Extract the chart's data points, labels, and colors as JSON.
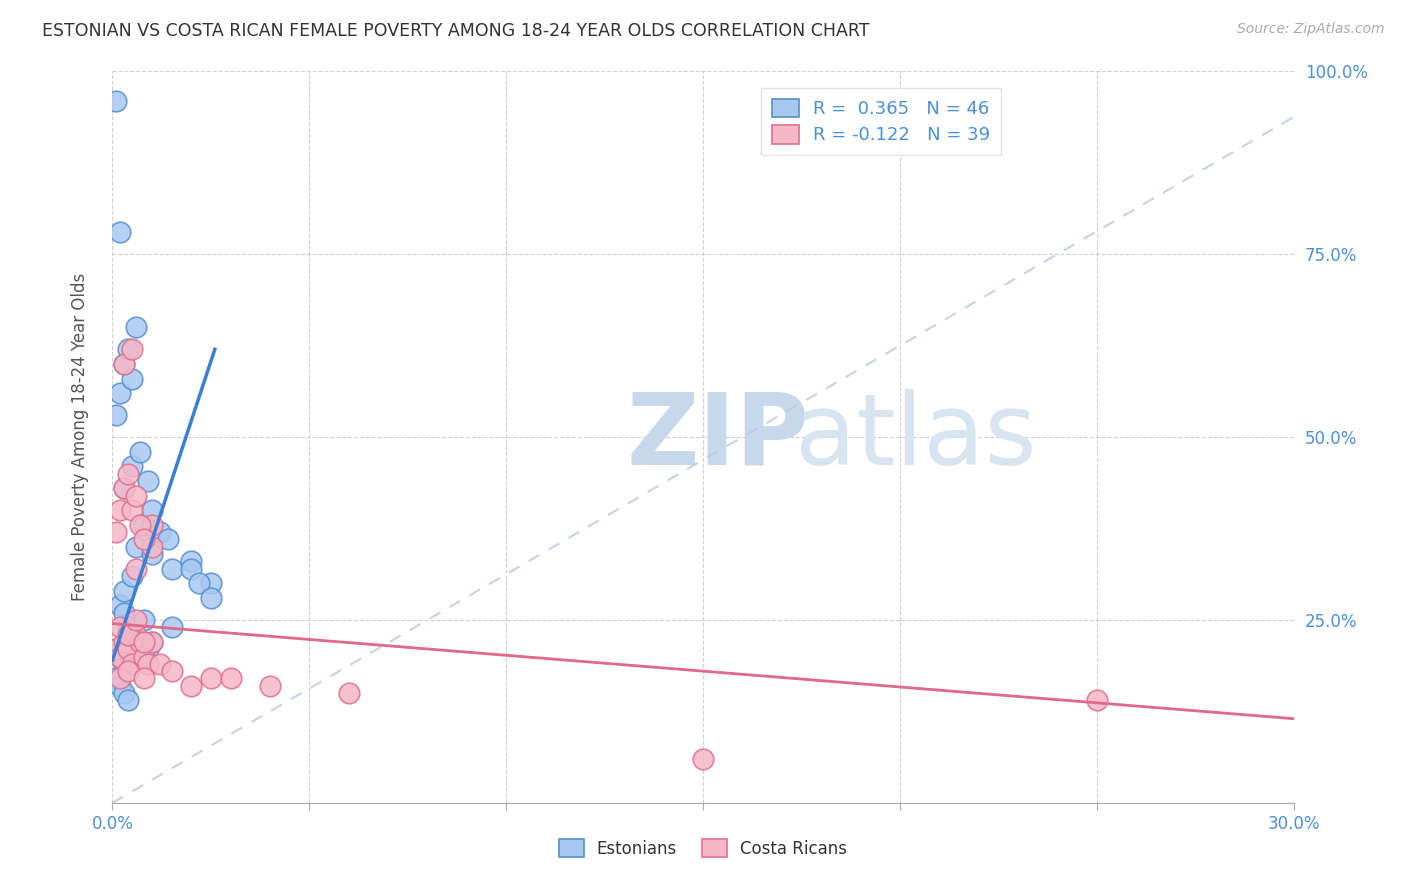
{
  "title": "ESTONIAN VS COSTA RICAN FEMALE POVERTY AMONG 18-24 YEAR OLDS CORRELATION CHART",
  "source": "Source: ZipAtlas.com",
  "ylabel": "Female Poverty Among 18-24 Year Olds",
  "xlim": [
    0.0,
    0.3
  ],
  "ylim": [
    0.0,
    1.0
  ],
  "estonian_color": "#a8c8f0",
  "costa_rican_color": "#f5b8c8",
  "estonian_edge_color": "#5590d0",
  "costa_rican_edge_color": "#e07090",
  "trend_blue": "#3a7fd5",
  "trend_pink": "#e06888",
  "diagonal_color": "#b8c8e0",
  "R_estonian": 0.365,
  "N_estonian": 46,
  "R_costa_rican": -0.122,
  "N_costa_rican": 39,
  "estonian_x": [
    0.001,
    0.002,
    0.003,
    0.004,
    0.005,
    0.006,
    0.007,
    0.008,
    0.009,
    0.01,
    0.002,
    0.003,
    0.005,
    0.006,
    0.008,
    0.01,
    0.012,
    0.014,
    0.003,
    0.005,
    0.007,
    0.009,
    0.001,
    0.002,
    0.003,
    0.004,
    0.005,
    0.006,
    0.001,
    0.002,
    0.003,
    0.004,
    0.01,
    0.015,
    0.02,
    0.025,
    0.001,
    0.002,
    0.003,
    0.004,
    0.005,
    0.008,
    0.015,
    0.02,
    0.022,
    0.025
  ],
  "estonian_y": [
    0.21,
    0.2,
    0.19,
    0.22,
    0.21,
    0.2,
    0.22,
    0.2,
    0.21,
    0.22,
    0.27,
    0.29,
    0.31,
    0.35,
    0.38,
    0.4,
    0.37,
    0.36,
    0.43,
    0.46,
    0.48,
    0.44,
    0.53,
    0.56,
    0.6,
    0.62,
    0.58,
    0.65,
    0.17,
    0.16,
    0.15,
    0.14,
    0.34,
    0.32,
    0.33,
    0.3,
    0.96,
    0.78,
    0.26,
    0.24,
    0.23,
    0.25,
    0.24,
    0.32,
    0.3,
    0.28
  ],
  "costa_rican_x": [
    0.001,
    0.002,
    0.003,
    0.004,
    0.005,
    0.006,
    0.007,
    0.008,
    0.009,
    0.01,
    0.002,
    0.004,
    0.006,
    0.008,
    0.01,
    0.012,
    0.015,
    0.003,
    0.005,
    0.01,
    0.002,
    0.004,
    0.006,
    0.008,
    0.02,
    0.025,
    0.03,
    0.04,
    0.06,
    0.15,
    0.25,
    0.001,
    0.002,
    0.003,
    0.004,
    0.005,
    0.006,
    0.007,
    0.008
  ],
  "costa_rican_y": [
    0.21,
    0.2,
    0.22,
    0.21,
    0.19,
    0.23,
    0.22,
    0.2,
    0.19,
    0.22,
    0.17,
    0.18,
    0.32,
    0.17,
    0.35,
    0.19,
    0.18,
    0.6,
    0.62,
    0.38,
    0.24,
    0.23,
    0.25,
    0.22,
    0.16,
    0.17,
    0.17,
    0.16,
    0.15,
    0.06,
    0.14,
    0.37,
    0.4,
    0.43,
    0.45,
    0.4,
    0.42,
    0.38,
    0.36
  ]
}
